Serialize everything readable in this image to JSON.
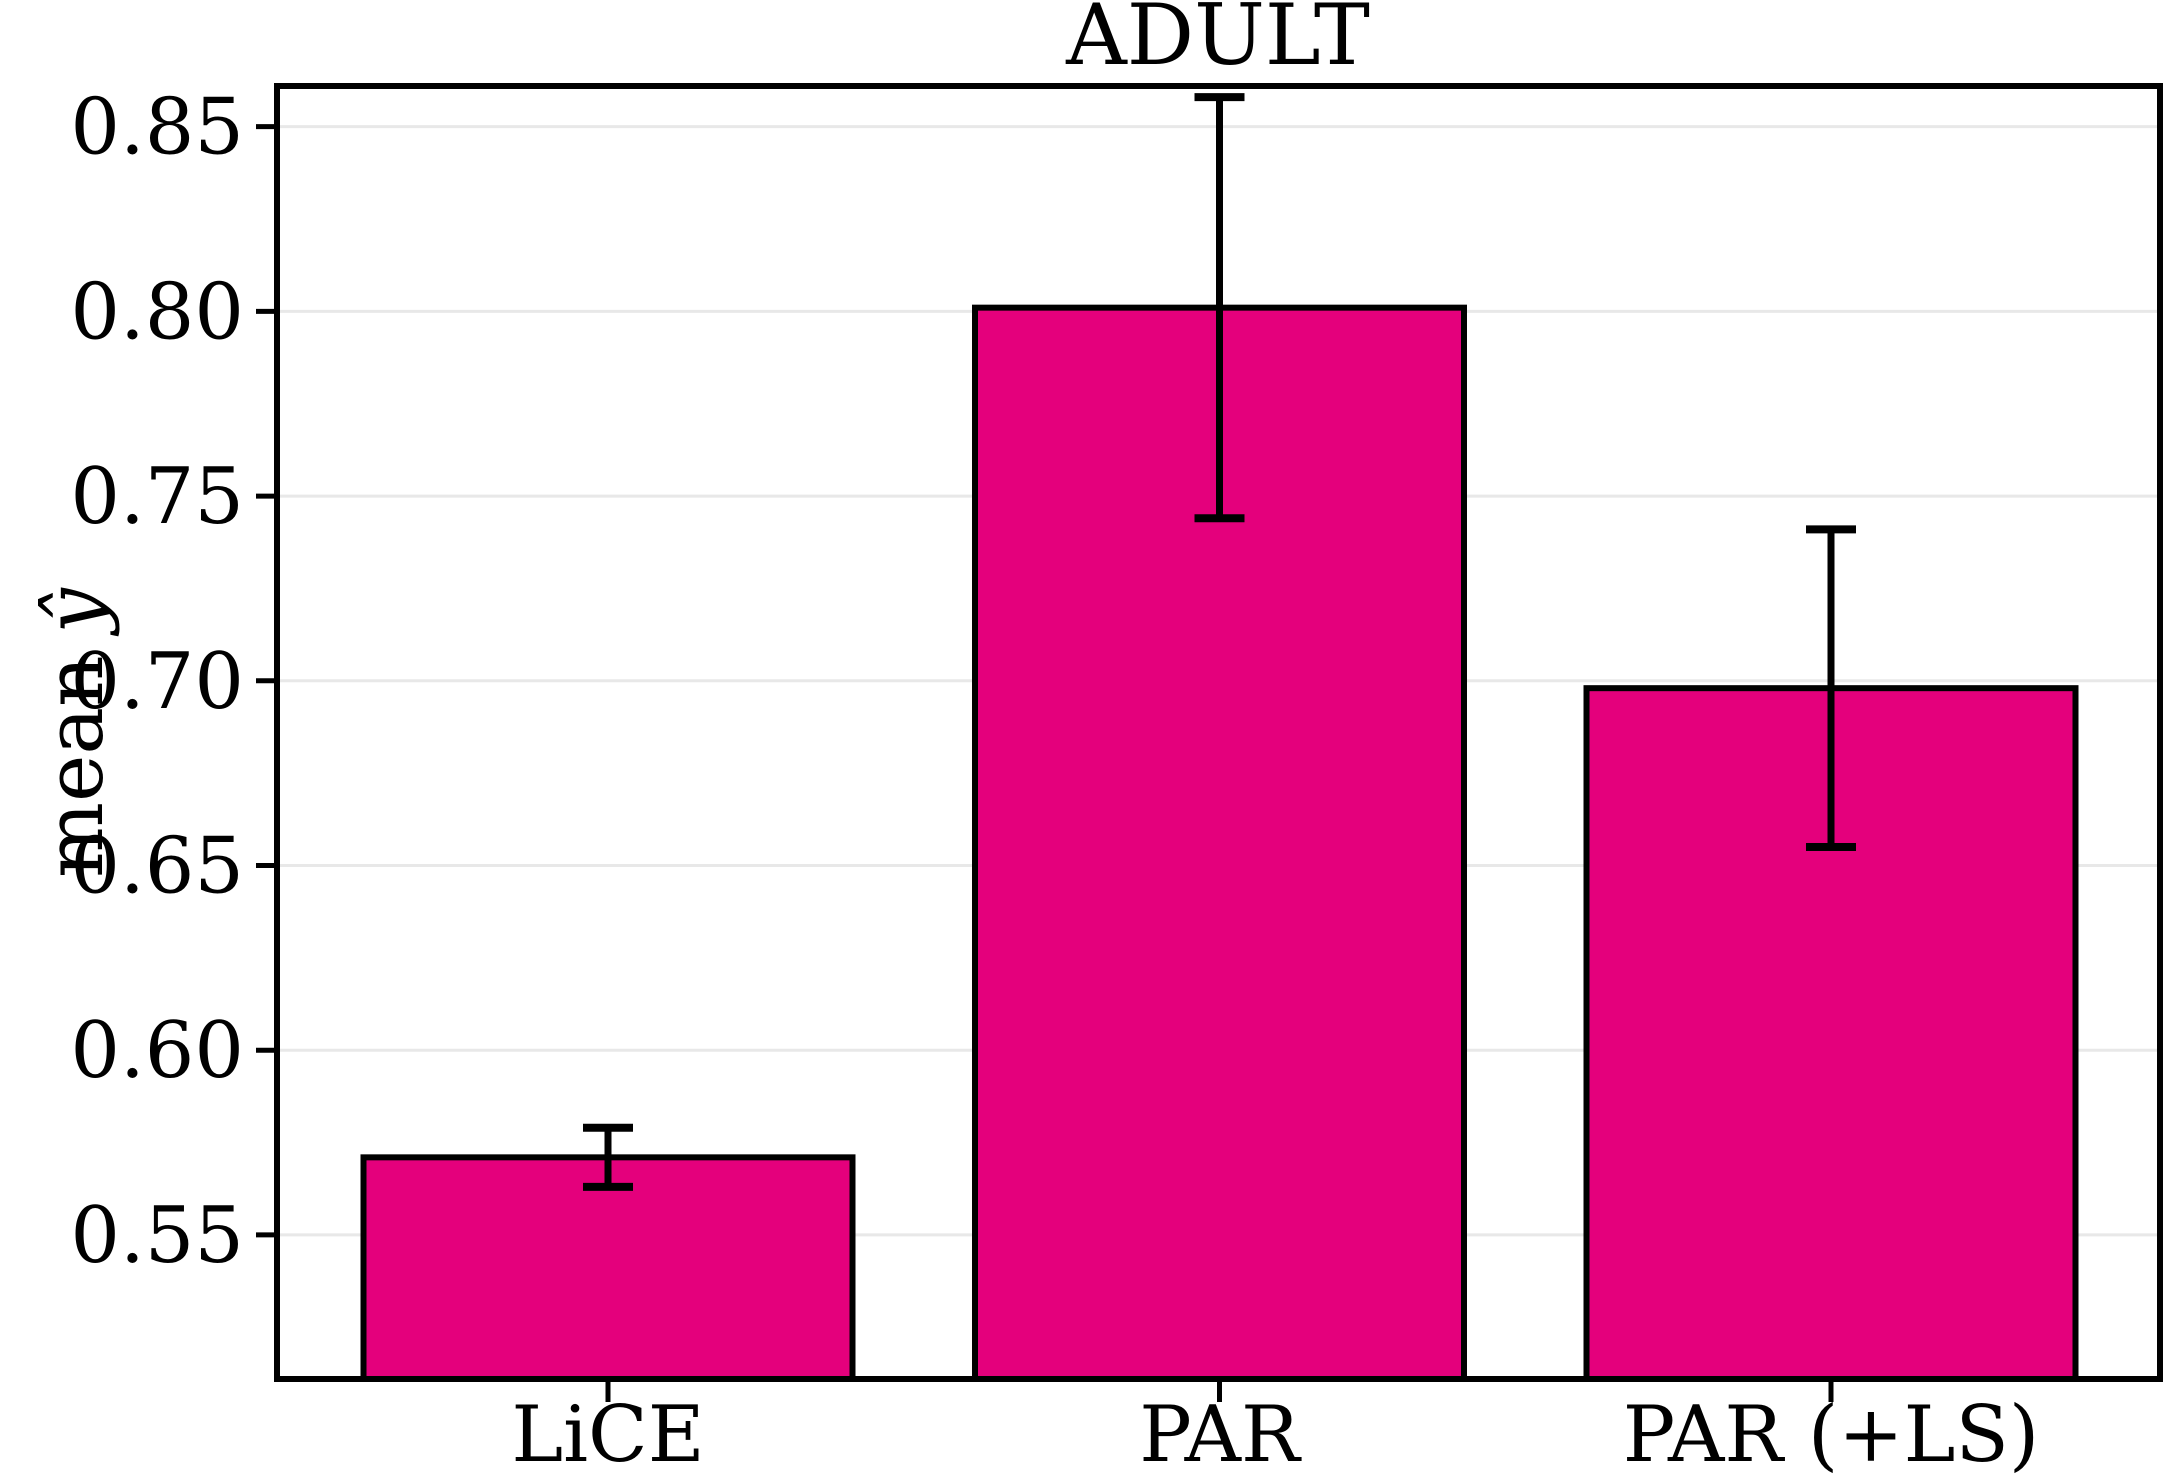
{
  "figure": {
    "background": "#ffffff"
  },
  "chart_data": {
    "type": "bar",
    "title": "ADULT",
    "categories": [
      "LiCE",
      "PAR",
      "PAR (+LS)"
    ],
    "values": [
      0.571,
      0.801,
      0.698
    ],
    "error_bars": [
      0.008,
      0.057,
      0.043
    ],
    "ylabel": {
      "prefix": "mean",
      "math": "ŷ",
      "full": "mean ŷ"
    },
    "xlabel": "",
    "ytick_values": [
      0.55,
      0.6,
      0.65,
      0.7,
      0.75,
      0.8,
      0.85
    ],
    "ytick_labels": [
      "0.55",
      "0.60",
      "0.65",
      "0.70",
      "0.75",
      "0.80",
      "0.85"
    ],
    "ylim": [
      0.511,
      0.861
    ],
    "grid": "horizontal",
    "legend_position": "none",
    "colors": {
      "bar_fill": "#E4007C",
      "bar_edge": "#000000",
      "error_bar": "#000000",
      "gridline": "#E8E8E8",
      "spine": "#000000",
      "text": "#000000",
      "background": "#ffffff"
    }
  }
}
